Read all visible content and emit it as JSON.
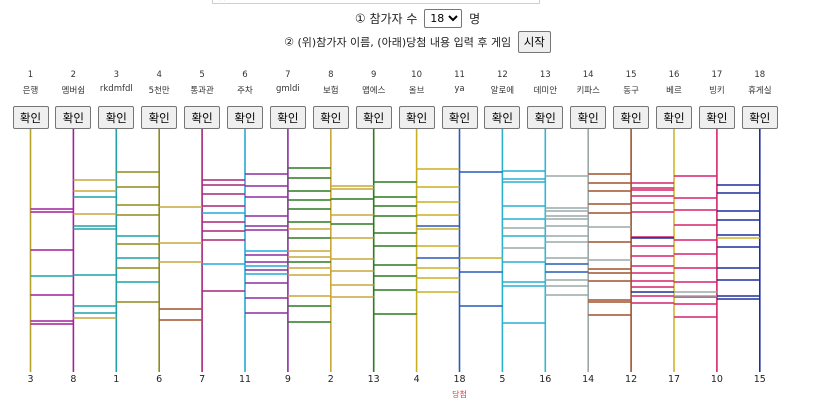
{
  "setup": {
    "step1_marker": "①",
    "step1_label": "참가자 수",
    "count_value": "18",
    "count_unit": "명",
    "step2_marker": "②",
    "step2_label": "(위)참가자 이름, (아래)당첨 내용 입력 후 게임",
    "start_button": "시작"
  },
  "players": [
    {
      "num": "1",
      "name": "은행",
      "color": "#b5a22b",
      "result": "3"
    },
    {
      "num": "2",
      "name": "멤버쉽",
      "color": "#a31f9b",
      "result": "8"
    },
    {
      "num": "3",
      "name": "rkdmfdl",
      "color": "#1fa2a8",
      "result": "1"
    },
    {
      "num": "4",
      "name": "5천만",
      "color": "#8e8a1d",
      "result": "6"
    },
    {
      "num": "5",
      "name": "통과관",
      "color": "#a6267a",
      "result": "7"
    },
    {
      "num": "6",
      "name": "주차",
      "color": "#25a9d8",
      "result": "11"
    },
    {
      "num": "7",
      "name": "gmldi",
      "color": "#8b2fa0",
      "result": "9"
    },
    {
      "num": "8",
      "name": "보험",
      "color": "#c9a73a",
      "result": "2"
    },
    {
      "num": "9",
      "name": "맵에스",
      "color": "#2e7a22",
      "result": "13"
    },
    {
      "num": "10",
      "name": "올브",
      "color": "#c8b020",
      "result": "4"
    },
    {
      "num": "11",
      "name": "ya",
      "color": "#2a5ab8",
      "result": "18"
    },
    {
      "num": "12",
      "name": "알로에",
      "color": "#2ab0cf",
      "result": "5"
    },
    {
      "num": "13",
      "name": "데미안",
      "color": "#2fb7d4",
      "result": "16"
    },
    {
      "num": "14",
      "name": "키파스",
      "color": "#9aa8a8",
      "result": "14"
    },
    {
      "num": "15",
      "name": "동구",
      "color": "#a0522d",
      "result": "12"
    },
    {
      "num": "16",
      "name": "베르",
      "color": "#d0b52a",
      "result": "17"
    },
    {
      "num": "17",
      "name": "빙키",
      "color": "#d6246e",
      "result": "10"
    },
    {
      "num": "18",
      "name": "휴게실",
      "color": "#1f2f9a",
      "result": "15"
    }
  ],
  "confirm_label": "확인",
  "win_label": "당첨",
  "win_column": 11,
  "win_color": "#e23b3b",
  "rungs": [
    {
      "gap": 1,
      "ys": [
        209,
        212,
        250,
        295,
        321,
        324
      ],
      "color": "#a31f9b"
    },
    {
      "gap": 1,
      "ys": [
        276
      ],
      "color": "#1fa2a8"
    },
    {
      "gap": 2,
      "ys": [
        197,
        226,
        229,
        275,
        306,
        313
      ],
      "color": "#1fa2a8"
    },
    {
      "gap": 2,
      "ys": [
        180,
        191,
        214,
        318
      ],
      "color": "#c9a73a"
    },
    {
      "gap": 3,
      "ys": [
        172,
        187,
        205,
        215,
        244,
        268,
        302
      ],
      "color": "#8e8a1d"
    },
    {
      "gap": 3,
      "ys": [
        236,
        258,
        282
      ],
      "color": "#1fa2a8"
    },
    {
      "gap": 4,
      "ys": [
        207,
        243,
        262
      ],
      "color": "#c9a73a"
    },
    {
      "gap": 4,
      "ys": [
        309,
        320
      ],
      "color": "#a0522d"
    },
    {
      "gap": 5,
      "ys": [
        180,
        185,
        194,
        206,
        222,
        231,
        240,
        291
      ],
      "color": "#a6267a"
    },
    {
      "gap": 5,
      "ys": [
        213,
        264
      ],
      "color": "#25a9d8"
    },
    {
      "gap": 6,
      "ys": [
        174,
        186,
        197,
        216,
        226,
        230,
        255,
        262,
        270,
        283,
        298,
        313
      ],
      "color": "#8b2fa0"
    },
    {
      "gap": 6,
      "ys": [
        251,
        266,
        274
      ],
      "color": "#25a9d8"
    },
    {
      "gap": 7,
      "ys": [
        168,
        178,
        191,
        200,
        209,
        222,
        238,
        262,
        306,
        322
      ],
      "color": "#2e7a22"
    },
    {
      "gap": 7,
      "ys": [
        229,
        251,
        257,
        268,
        275,
        296
      ],
      "color": "#c9a73a"
    },
    {
      "gap": 8,
      "ys": [
        186,
        189,
        215,
        238,
        259,
        271,
        285,
        297
      ],
      "color": "#c9a73a"
    },
    {
      "gap": 8,
      "ys": [
        199,
        224
      ],
      "color": "#2e7a22"
    },
    {
      "gap": 9,
      "ys": [
        182,
        197,
        206,
        216,
        233,
        246,
        265,
        276,
        290,
        314
      ],
      "color": "#2e7a22"
    },
    {
      "gap": 10,
      "ys": [
        169,
        187,
        202,
        215,
        229,
        246,
        268,
        278,
        292
      ],
      "color": "#c8b020"
    },
    {
      "gap": 10,
      "ys": [
        226,
        258
      ],
      "color": "#2a5ab8"
    },
    {
      "gap": 11,
      "ys": [
        172,
        272,
        306
      ],
      "color": "#2a5ab8"
    },
    {
      "gap": 11,
      "ys": [
        258
      ],
      "color": "#c8b020"
    },
    {
      "gap": 12,
      "ys": [
        171,
        179,
        182,
        206,
        219,
        236,
        262,
        282,
        286,
        323
      ],
      "color": "#2ab0cf"
    },
    {
      "gap": 12,
      "ys": [
        228,
        248
      ],
      "color": "#9aa8a8"
    },
    {
      "gap": 13,
      "ys": [
        176,
        208,
        211,
        216,
        219,
        226,
        236,
        242,
        258,
        280,
        286,
        295
      ],
      "color": "#9aa8a8"
    },
    {
      "gap": 13,
      "ys": [
        264,
        272
      ],
      "color": "#2a5ab8"
    },
    {
      "gap": 14,
      "ys": [
        174,
        183,
        191,
        204,
        213,
        242,
        269,
        273,
        281,
        300,
        302,
        315
      ],
      "color": "#a0522d"
    },
    {
      "gap": 14,
      "ys": [
        227,
        260
      ],
      "color": "#9aa8a8"
    },
    {
      "gap": 15,
      "ys": [
        183,
        188,
        190,
        196,
        203,
        212,
        237,
        246,
        256,
        266,
        273,
        281,
        287,
        296,
        303
      ],
      "color": "#d6246e"
    },
    {
      "gap": 15,
      "ys": [
        238,
        292
      ],
      "color": "#1f2f9a"
    },
    {
      "gap": 16,
      "ys": [
        176,
        198,
        210,
        225,
        240,
        254,
        268,
        282,
        297,
        304,
        317
      ],
      "color": "#d6246e"
    },
    {
      "gap": 16,
      "ys": [
        292,
        296
      ],
      "color": "#9aa8a8"
    },
    {
      "gap": 17,
      "ys": [
        185,
        193,
        211,
        220,
        235,
        247,
        268,
        280,
        296,
        299
      ],
      "color": "#1f2f9a"
    },
    {
      "gap": 17,
      "ys": [
        238
      ],
      "color": "#d0b52a"
    }
  ]
}
